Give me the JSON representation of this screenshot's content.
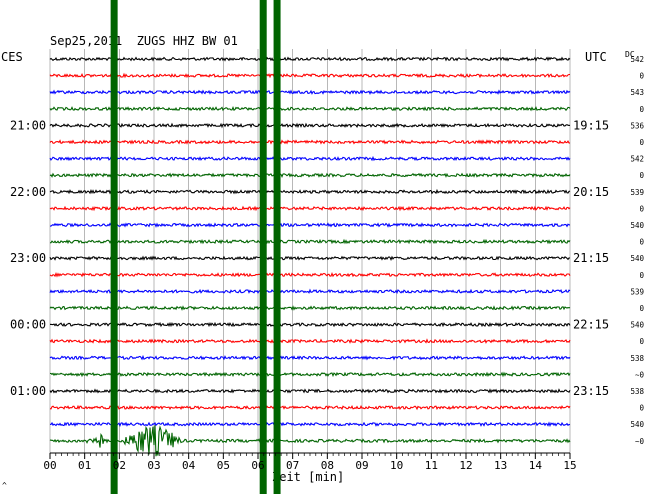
{
  "chart_data": {
    "type": "line",
    "title": "Sep25,2011  ZUGS HHZ BW 01",
    "left_timezone": "CES",
    "right_timezone": "UTC",
    "dc_label": "DC",
    "xlabel": "Zeit [min]",
    "xlim": [
      0,
      15
    ],
    "x_ticks": [
      "00",
      "01",
      "02",
      "03",
      "04",
      "05",
      "06",
      "07",
      "08",
      "09",
      "10",
      "11",
      "12",
      "13",
      "14",
      "15"
    ],
    "grid": true,
    "trace_count": 24,
    "trace_colors": [
      "#000000",
      "#ff0000",
      "#0000ff",
      "#006400"
    ],
    "left_hour_labels": [
      {
        "trace": 4,
        "text": "21:00"
      },
      {
        "trace": 8,
        "text": "22:00"
      },
      {
        "trace": 12,
        "text": "23:00"
      },
      {
        "trace": 16,
        "text": "00:00"
      },
      {
        "trace": 20,
        "text": "01:00"
      }
    ],
    "right_hour_labels": [
      {
        "trace": 4,
        "text": "19:15"
      },
      {
        "trace": 8,
        "text": "20:15"
      },
      {
        "trace": 12,
        "text": "21:15"
      },
      {
        "trace": 16,
        "text": "22:15"
      },
      {
        "trace": 20,
        "text": "23:15"
      }
    ],
    "dc_offsets": [
      542,
      "0",
      543,
      "0",
      536,
      "0",
      542,
      "0",
      539,
      "0",
      540,
      "0",
      540,
      "0",
      539,
      "0",
      540,
      "0",
      538,
      "~0",
      538,
      "0",
      540,
      "~0"
    ],
    "events": [
      {
        "minute": 1.85,
        "from_trace": 0,
        "to_trace": 23,
        "color": "#006400"
      },
      {
        "minute": 6.15,
        "from_trace": 0,
        "to_trace": 23,
        "color": "#006400"
      },
      {
        "minute": 6.55,
        "from_trace": 0,
        "to_trace": 23,
        "color": "#006400"
      }
    ],
    "last_trace_bursts": [
      {
        "start": 1.0,
        "end": 1.7,
        "amplitude": 9
      },
      {
        "start": 2.0,
        "end": 3.9,
        "amplitude": 16
      }
    ]
  },
  "footnote": "^"
}
